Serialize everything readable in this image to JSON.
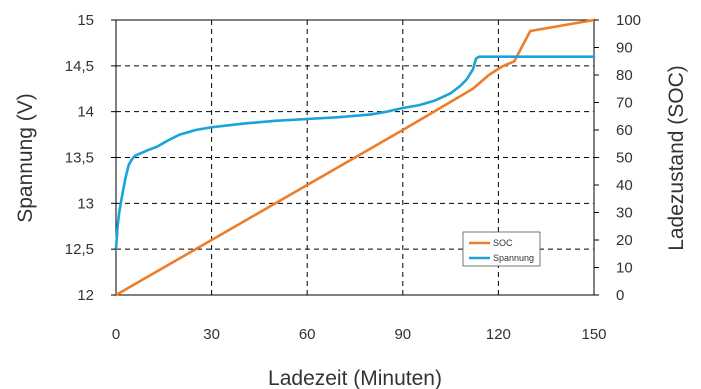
{
  "chart_data": {
    "type": "line",
    "xlabel": "Ladezeit (Minuten)",
    "ylabel_left": "Spannung (V)",
    "ylabel_right": "Ladezustand (SOC)",
    "xlim": [
      0,
      150
    ],
    "ylim_left": [
      12,
      15
    ],
    "ylim_right": [
      0,
      100
    ],
    "x_ticks": [
      "0",
      "30",
      "60",
      "90",
      "120",
      "150"
    ],
    "y_left_ticks": [
      "12",
      "12,5",
      "13",
      "13,5",
      "14",
      "14,5",
      "15"
    ],
    "y_right_ticks": [
      "0",
      "10",
      "20",
      "30",
      "40",
      "50",
      "60",
      "70",
      "80",
      "90",
      "100"
    ],
    "grid": true,
    "legend_position": "bottom-right",
    "series": [
      {
        "name": "SOC",
        "axis": "right",
        "color": "#ee7d2a",
        "points": [
          [
            0,
            0
          ],
          [
            30,
            20
          ],
          [
            60,
            40
          ],
          [
            90,
            60
          ],
          [
            112,
            75
          ],
          [
            117,
            80
          ],
          [
            121,
            83
          ],
          [
            125,
            85
          ],
          [
            130,
            96
          ],
          [
            140,
            98
          ],
          [
            150,
            100
          ]
        ]
      },
      {
        "name": "Spannung",
        "axis": "left",
        "color": "#1aa3d8",
        "points": [
          [
            0,
            12.5
          ],
          [
            0.5,
            12.75
          ],
          [
            1,
            12.9
          ],
          [
            2,
            13.1
          ],
          [
            3,
            13.28
          ],
          [
            4,
            13.42
          ],
          [
            5,
            13.48
          ],
          [
            6,
            13.52
          ],
          [
            8,
            13.55
          ],
          [
            10,
            13.58
          ],
          [
            13,
            13.62
          ],
          [
            16,
            13.68
          ],
          [
            20,
            13.75
          ],
          [
            25,
            13.8
          ],
          [
            30,
            13.83
          ],
          [
            40,
            13.87
          ],
          [
            50,
            13.9
          ],
          [
            60,
            13.92
          ],
          [
            70,
            13.94
          ],
          [
            80,
            13.97
          ],
          [
            85,
            14.0
          ],
          [
            90,
            14.04
          ],
          [
            95,
            14.07
          ],
          [
            100,
            14.12
          ],
          [
            105,
            14.2
          ],
          [
            108,
            14.28
          ],
          [
            110,
            14.35
          ],
          [
            112,
            14.46
          ],
          [
            113,
            14.58
          ],
          [
            114,
            14.6
          ],
          [
            120,
            14.6
          ],
          [
            150,
            14.6
          ]
        ]
      }
    ]
  }
}
